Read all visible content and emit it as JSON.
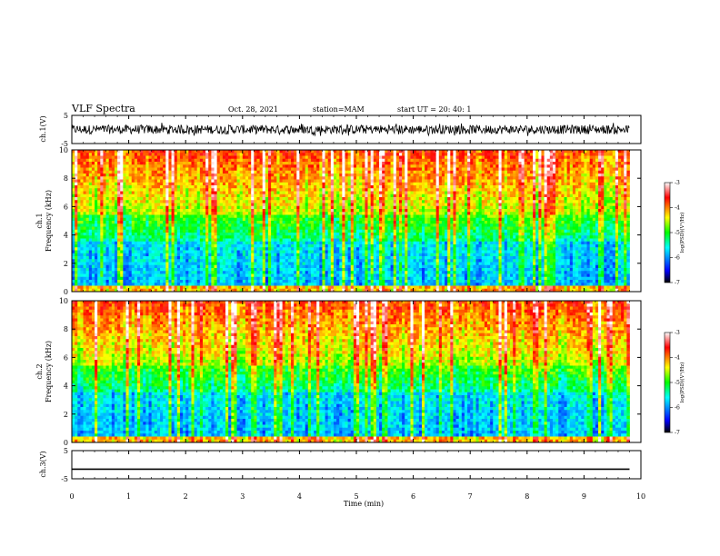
{
  "header": {
    "title": "VLF Spectra",
    "date": "Oct. 28, 2021",
    "station": "station=MAM",
    "start": "start  UT  =   20: 40: 1"
  },
  "chart_data": [
    {
      "type": "line",
      "panel": "waveform-ch1",
      "ylabel": "ch.1(V)",
      "ylim": [
        -5,
        5
      ],
      "yticks": [
        "5",
        "-5"
      ],
      "xlim": [
        0,
        10
      ],
      "description_level": "dense noise-like waveform, amplitude roughly -2 to 2 V"
    },
    {
      "type": "heatmap",
      "panel": "spectrogram-ch1",
      "ylabel_line1": "ch.1",
      "ylabel_line2": "Frequency (kHz)",
      "ylim": [
        0,
        10
      ],
      "yticks": [
        "0",
        "2",
        "4",
        "6",
        "8",
        "10"
      ],
      "xlim": [
        0,
        10
      ],
      "colorbar": {
        "label": "log(PSD)(V²/Hz)",
        "range": [
          -7,
          -3
        ],
        "ticks": [
          "-3",
          "-4",
          "-5",
          "-6",
          "-7"
        ],
        "colors": [
          "#000000",
          "#0000ff",
          "#00ffff",
          "#00ff00",
          "#ffff00",
          "#ff0000",
          "#ffffff"
        ]
      }
    },
    {
      "type": "heatmap",
      "panel": "spectrogram-ch2",
      "ylabel_line1": "ch.2",
      "ylabel_line2": "Frequency (kHz)",
      "ylim": [
        0,
        10
      ],
      "yticks": [
        "0",
        "2",
        "4",
        "6",
        "8",
        "10"
      ],
      "xlim": [
        0,
        10
      ],
      "colorbar": {
        "label": "log(PSD)(V²/Hz)",
        "range": [
          -7,
          -3
        ],
        "ticks": [
          "-3",
          "-4",
          "-5",
          "-6",
          "-7"
        ],
        "colors": [
          "#000000",
          "#0000ff",
          "#00ffff",
          "#00ff00",
          "#ffff00",
          "#ff0000",
          "#ffffff"
        ]
      }
    },
    {
      "type": "line",
      "panel": "waveform-ch3",
      "ylabel": "ch.3(V)",
      "ylim": [
        -5,
        5
      ],
      "yticks": [
        "5",
        "-5"
      ],
      "x": [
        0,
        9.8
      ],
      "values": [
        -1.6,
        -1.6
      ],
      "xlim": [
        0,
        10
      ]
    }
  ],
  "xaxis": {
    "label": "Time (min)",
    "ticks": [
      "0",
      "1",
      "2",
      "3",
      "4",
      "5",
      "6",
      "7",
      "8",
      "9",
      "10"
    ],
    "data_end_min": 9.8
  }
}
